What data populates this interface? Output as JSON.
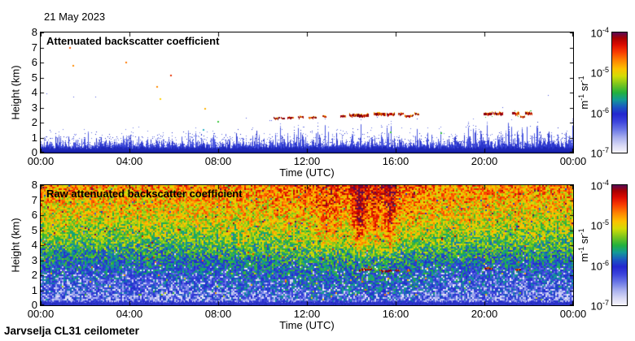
{
  "header": {
    "date": "21 May 2023"
  },
  "footer": {
    "text": "Jarvselja CL31 ceilometer"
  },
  "colors": {
    "axis": "#000000",
    "background": "#ffffff",
    "noise_band_dark": "#161fa6",
    "noise_band_mid": "#1d26b8",
    "noise_spike": "#2b36cc",
    "noise_spike_light": "#4a57e0",
    "noise_speckle": "#6e79e8",
    "cloud_palette": [
      "#6d001d",
      "#8a0004",
      "#b00000",
      "#d13c00",
      "#ef7f00"
    ],
    "cloud_fringe_yellow": "#ffc400",
    "cloud_fringe_green": "#35c435",
    "raw_bottom_band": "#2c33cb"
  },
  "colormap": {
    "stops": [
      [
        0.0,
        "#f5f4fd"
      ],
      [
        0.05,
        "#dcdcf6"
      ],
      [
        0.12,
        "#aab1ef"
      ],
      [
        0.19,
        "#6b77e6"
      ],
      [
        0.26,
        "#3a42dc"
      ],
      [
        0.32,
        "#2428cf"
      ],
      [
        0.38,
        "#1b59c2"
      ],
      [
        0.44,
        "#129b97"
      ],
      [
        0.5,
        "#23b13c"
      ],
      [
        0.57,
        "#7cc71e"
      ],
      [
        0.64,
        "#d6dc06"
      ],
      [
        0.7,
        "#fdc200"
      ],
      [
        0.77,
        "#ff8400"
      ],
      [
        0.84,
        "#f93c00"
      ],
      [
        0.9,
        "#dc0c00"
      ],
      [
        0.955,
        "#a80000"
      ],
      [
        1.0,
        "#5e0a50"
      ]
    ]
  },
  "chart_data": [
    {
      "type": "heatmap",
      "title": "Attenuated backscatter coefficient",
      "xlabel": "Time (UTC)",
      "ylabel": "Height (km)",
      "x_range_hours": [
        0,
        24
      ],
      "y_range_km": [
        0,
        8
      ],
      "x_tick_hours": [
        0,
        4,
        8,
        12,
        16,
        20,
        24
      ],
      "x_tick_labels": [
        "00:00",
        "04:00",
        "08:00",
        "12:00",
        "16:00",
        "20:00",
        "00:00"
      ],
      "y_tick_labels": [
        "0",
        "1",
        "2",
        "3",
        "4",
        "5",
        "6",
        "7",
        "8"
      ],
      "colorbar": {
        "scale": "log",
        "ticks": [
          {
            "base": "10",
            "exp": "-4"
          },
          {
            "base": "10",
            "exp": "-5"
          },
          {
            "base": "10",
            "exp": "-6"
          },
          {
            "base": "10",
            "exp": "-7"
          }
        ],
        "unit_parts": [
          {
            "text": "m"
          },
          {
            "sup": "-1"
          },
          {
            "text": " sr"
          },
          {
            "sup": "-1"
          }
        ]
      },
      "surface_noise_band": {
        "solid_top_km": 0.3,
        "spike_top_km": 1.4,
        "evening_boost_hours": [
          18.3,
          23.9
        ],
        "day_boost_hours": [
          10,
          17
        ]
      },
      "cloud_segments": [
        [
          10.5,
          10.78,
          2.3,
          2,
          0
        ],
        [
          10.84,
          10.98,
          2.28,
          2,
          0
        ],
        [
          11.12,
          11.4,
          2.33,
          2,
          0
        ],
        [
          11.58,
          11.82,
          2.33,
          2,
          0
        ],
        [
          12.06,
          12.42,
          2.36,
          2,
          0
        ],
        [
          12.68,
          12.88,
          2.4,
          2,
          0
        ],
        [
          13.52,
          13.75,
          2.42,
          2,
          0
        ],
        [
          13.9,
          14.35,
          2.48,
          3,
          0
        ],
        [
          14.4,
          14.78,
          2.5,
          3,
          0
        ],
        [
          15.0,
          15.55,
          2.53,
          3,
          0
        ],
        [
          15.6,
          15.95,
          2.56,
          3,
          0
        ],
        [
          16.1,
          16.35,
          2.58,
          2,
          0
        ],
        [
          16.42,
          16.78,
          2.45,
          2,
          0
        ],
        [
          16.85,
          17.05,
          2.58,
          2,
          0
        ],
        [
          19.95,
          20.35,
          2.55,
          3,
          1
        ],
        [
          20.42,
          20.82,
          2.6,
          3,
          1
        ],
        [
          21.25,
          21.55,
          2.6,
          3,
          1
        ],
        [
          21.6,
          21.8,
          2.38,
          2,
          1
        ],
        [
          21.85,
          22.15,
          2.6,
          3,
          1
        ]
      ],
      "isolated_points": [
        {
          "t": 1.32,
          "h": 7.0,
          "color": "#ff5a00"
        },
        {
          "t": 1.45,
          "h": 5.8,
          "color": "#ff8c00"
        },
        {
          "t": 3.85,
          "h": 6.0,
          "color": "#ff7800"
        },
        {
          "t": 5.87,
          "h": 5.15,
          "color": "#e83000"
        },
        {
          "t": 5.25,
          "h": 4.4,
          "color": "#ff8c00"
        },
        {
          "t": 5.4,
          "h": 3.55,
          "color": "#ffd200"
        },
        {
          "t": 7.4,
          "h": 2.9,
          "color": "#ffb400"
        },
        {
          "t": 8.0,
          "h": 2.05,
          "color": "#3cc83c"
        },
        {
          "t": 7.35,
          "h": 1.5,
          "color": "#30b4c8"
        },
        {
          "t": 15.78,
          "h": 1.33,
          "color": "#3cc83c"
        },
        {
          "t": 18.05,
          "h": 1.3,
          "color": "#3cc83c"
        }
      ]
    },
    {
      "type": "heatmap",
      "title": "Raw attenuated backscatter coefficient",
      "xlabel": "Time (UTC)",
      "ylabel": "Height (km)",
      "x_range_hours": [
        0,
        24
      ],
      "y_range_km": [
        0,
        8
      ],
      "x_tick_hours": [
        0,
        4,
        8,
        12,
        16,
        20,
        24
      ],
      "x_tick_labels": [
        "00:00",
        "04:00",
        "08:00",
        "12:00",
        "16:00",
        "20:00",
        "00:00"
      ],
      "y_tick_labels": [
        "0",
        "1",
        "2",
        "3",
        "4",
        "5",
        "6",
        "7",
        "8"
      ],
      "colorbar": {
        "scale": "log",
        "ticks": [
          {
            "base": "10",
            "exp": "-4"
          },
          {
            "base": "10",
            "exp": "-5"
          },
          {
            "base": "10",
            "exp": "-6"
          },
          {
            "base": "10",
            "exp": "-7"
          }
        ],
        "unit_parts": [
          {
            "text": "m"
          },
          {
            "sup": "-1"
          },
          {
            "text": " sr"
          },
          {
            "sup": "-1"
          }
        ]
      },
      "noise_profile": {
        "base_stops": [
          [
            0.0,
            0.2
          ],
          [
            0.5,
            0.24
          ],
          [
            1.0,
            0.28
          ],
          [
            1.5,
            0.3
          ],
          [
            2.0,
            0.33
          ],
          [
            2.5,
            0.36
          ],
          [
            3.0,
            0.41
          ],
          [
            3.5,
            0.46
          ],
          [
            4.0,
            0.52
          ],
          [
            5.0,
            0.6
          ],
          [
            6.0,
            0.66
          ],
          [
            7.0,
            0.71
          ],
          [
            7.6,
            0.74
          ],
          [
            8.0,
            0.76
          ]
        ],
        "noise_amp": 0.3,
        "white_speckle_below_km": 2.7,
        "day_bump": {
          "center_hour": 14.2,
          "sigma_hours": 4.5,
          "amp": 0.06
        },
        "streaks": [
          {
            "center_hour": 12.9,
            "sigma_hours": 0.5,
            "amp": 0.07
          },
          {
            "center_hour": 14.4,
            "sigma_hours": 0.35,
            "amp": 0.17
          },
          {
            "center_hour": 15.1,
            "sigma_hours": 0.2,
            "amp": 0.1
          },
          {
            "center_hour": 15.75,
            "sigma_hours": 0.3,
            "amp": 0.15
          }
        ]
      },
      "cloud_segments": [
        [
          14.35,
          14.9,
          2.3,
          2,
          0
        ],
        [
          15.25,
          15.8,
          2.32,
          2,
          0
        ],
        [
          15.95,
          16.15,
          2.32,
          2,
          0
        ],
        [
          16.5,
          16.65,
          2.35,
          2,
          0
        ],
        [
          20.0,
          20.35,
          2.42,
          2,
          0
        ],
        [
          21.4,
          21.65,
          2.38,
          2,
          0
        ]
      ]
    }
  ]
}
